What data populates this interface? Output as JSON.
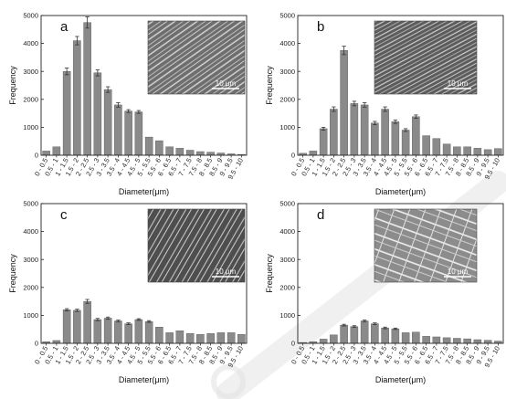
{
  "figure": {
    "watermark_color": "#e3e3e3"
  },
  "chart_data": [
    {
      "type": "bar",
      "panel_label": "a",
      "categories": [
        "0 - 0.5",
        "0.5 - 1",
        "1 - 1.5",
        "1.5 - 2",
        "2 - 2.5",
        "2.5 - 3",
        "3 - 3.5",
        "3.5 - 4",
        "4 - 4.5",
        "4.5 - 5",
        "5 - 5.5",
        "5.5 - 6",
        "6 - 6.5",
        "6.5 - 7",
        "7 - 7.5",
        "7.5 - 8",
        "8 - 8.5",
        "8.5 - 9",
        "9 - 9.5",
        "9.5 - 10"
      ],
      "tick_labels": [
        "0 - 0.5",
        "0.5 - 1",
        "1 - 1.5",
        "1.5 - 2",
        "2 - 2.5",
        "2.5 - 3",
        "3 - 3.5",
        "3.5 - 4",
        "4 - 4.5",
        "4.5 - 5",
        "5 - 5.5",
        "5.5 - 6",
        "6 - 6.5",
        "6.5 - 7",
        "7 - 7.5",
        "7.5 - 8",
        "8 - 8.5",
        "8.5 - 9",
        "9 - 9.5",
        "9.5 - 10"
      ],
      "values": [
        150,
        300,
        3000,
        4100,
        4750,
        2950,
        2350,
        1800,
        1580,
        1550,
        650,
        520,
        300,
        250,
        180,
        130,
        110,
        80,
        50,
        30
      ],
      "errors": [
        0,
        0,
        120,
        150,
        200,
        110,
        100,
        80,
        50,
        50,
        0,
        0,
        0,
        0,
        0,
        0,
        0,
        0,
        0,
        0
      ],
      "xlabel": "Diameter(μm)",
      "ylabel": "Frequency",
      "ylim": [
        0,
        5000
      ],
      "yticks": [
        "0",
        "1000",
        "2000",
        "3000",
        "4000",
        "5000"
      ],
      "scale_bar": "10 μm",
      "bar_color": "#8a8a8a"
    },
    {
      "type": "bar",
      "panel_label": "b",
      "categories": [
        "0 - 0.5",
        "0.5 - 1",
        "1 - 1.5",
        "1.5 - 2",
        "2 - 2.5",
        "2.5 - 3",
        "3 - 3.5",
        "3.5 - 4",
        "4 - 4.5",
        "4.5 - 5",
        "5 - 5.5",
        "5.5 - 6",
        "6 - 6.5",
        "6.5 - 7",
        "7 - 7.5",
        "7.5 - 8",
        "8 - 8.5",
        "8.5 - 9",
        "9 - 9.5",
        "9.5 - 10"
      ],
      "tick_labels": [
        "0 - 0.5",
        "0.5 - 1",
        "1 - 1.5",
        "1.5 - 2",
        "2 - 2.5",
        "2.5 - 3",
        "3 - 3.5",
        "3.5 - 4",
        "4 - 4.5",
        "4.5 - 5",
        "5 - 5.5",
        "5.5 - 6",
        "6 - 6.5",
        "6.5 - 7",
        "7 - 7.5",
        "7.5 - 8",
        "8 - 8.5",
        "8.5 - 9",
        "9 - 9.5",
        "9.5 - 10"
      ],
      "values": [
        70,
        150,
        950,
        1650,
        3750,
        1850,
        1800,
        1150,
        1650,
        1200,
        900,
        1380,
        700,
        600,
        400,
        300,
        300,
        250,
        200,
        240
      ],
      "errors": [
        0,
        0,
        50,
        80,
        150,
        80,
        80,
        60,
        80,
        60,
        50,
        60,
        0,
        0,
        0,
        0,
        0,
        0,
        0,
        0
      ],
      "xlabel": "Diameter(μm)",
      "ylabel": "Frequency",
      "ylim": [
        0,
        5000
      ],
      "yticks": [
        "0",
        "1000",
        "2000",
        "3000",
        "4000",
        "5000"
      ],
      "scale_bar": "10 μm",
      "bar_color": "#8a8a8a"
    },
    {
      "type": "bar",
      "panel_label": "c",
      "categories": [
        "0 - 0.5",
        "0.5 - 1",
        "1 - 1.5",
        "1.5 - 2",
        "2 - 2.5",
        "2.5 - 3",
        "3 - 3.5",
        "3.5 - 4",
        "4 - 4.5",
        "4.5 - 5",
        "5 - 5.5",
        "5.5 - 6",
        "6 - 6.5",
        "6.5 - 7",
        "7 - 7.5",
        "7.5 - 8",
        "8 - 8.5",
        "8.5 - 9",
        "9 - 9.5",
        "9.5 - 10"
      ],
      "tick_labels": [
        "0 - 0.5",
        "0.5 - 1",
        "1 - 1.5",
        "1.5 - 2",
        "2 - 2.5",
        "2.5 - 3",
        "3 - 3.5",
        "3.5 - 4",
        "4 - 4.5",
        "4.5 - 5",
        "5 - 5.5",
        "5.5 - 6",
        "6 - 6.5",
        "6.5 - 7",
        "7 - 7.5",
        "7.5 - 8",
        "8 - 8.5",
        "8.5 - 9",
        "9 - 9.5",
        "9.5 - 10"
      ],
      "values": [
        60,
        100,
        1200,
        1180,
        1500,
        850,
        900,
        800,
        700,
        850,
        780,
        580,
        380,
        450,
        350,
        320,
        350,
        380,
        380,
        320
      ],
      "errors": [
        0,
        0,
        40,
        40,
        70,
        40,
        40,
        30,
        30,
        30,
        30,
        0,
        0,
        0,
        0,
        0,
        0,
        0,
        0,
        0
      ],
      "xlabel": "Diameter(μm)",
      "ylabel": "Frequency",
      "ylim": [
        0,
        5000
      ],
      "yticks": [
        "0",
        "1000",
        "2000",
        "3000",
        "4000",
        "5000"
      ],
      "scale_bar": "10 μm",
      "bar_color": "#8a8a8a"
    },
    {
      "type": "bar",
      "panel_label": "d",
      "categories": [
        "0 - 0.5",
        "0.5 - 1",
        "1 - 1.5",
        "1.5 - 2",
        "2 - 2.5",
        "2.5 - 3",
        "3 - 3.5",
        "3.5 - 4",
        "4 - 4.5",
        "4.5 - 5",
        "5 - 5.5",
        "5.5 - 6",
        "6 - 6.5",
        "6.5 - 7",
        "7 - 7.5",
        "7.5 - 8",
        "8 - 8.5",
        "8.5 - 9",
        "9 - 9.5",
        "9.5 - 10"
      ],
      "tick_labels": [
        "0 - 0.5",
        "0.5 - 1",
        "1 - 1.5",
        "1.5 - 2",
        "2 - 2.5",
        "2.5 - 3",
        "3 - 3.5",
        "3.5 - 4",
        "4 - 4.5",
        "4.5 - 5",
        "5 - 5.5",
        "5.5 - 6",
        "6 - 6.5",
        "6.5 - 7",
        "7 - 7.5",
        "7.5 - 8",
        "8 - 8.5",
        "8.5 - 9",
        "9 - 9.5",
        "9.5 - 10"
      ],
      "values": [
        30,
        60,
        150,
        300,
        650,
        600,
        800,
        700,
        550,
        520,
        380,
        400,
        250,
        230,
        200,
        180,
        160,
        130,
        110,
        80
      ],
      "errors": [
        0,
        0,
        0,
        0,
        30,
        30,
        30,
        30,
        30,
        25,
        0,
        0,
        0,
        0,
        0,
        0,
        0,
        0,
        0,
        0
      ],
      "xlabel": "Diameter(μm)",
      "ylabel": "Frequency",
      "ylim": [
        0,
        5000
      ],
      "yticks": [
        "0",
        "1000",
        "2000",
        "3000",
        "4000",
        "5000"
      ],
      "scale_bar": "10 μm",
      "bar_color": "#8a8a8a"
    }
  ]
}
